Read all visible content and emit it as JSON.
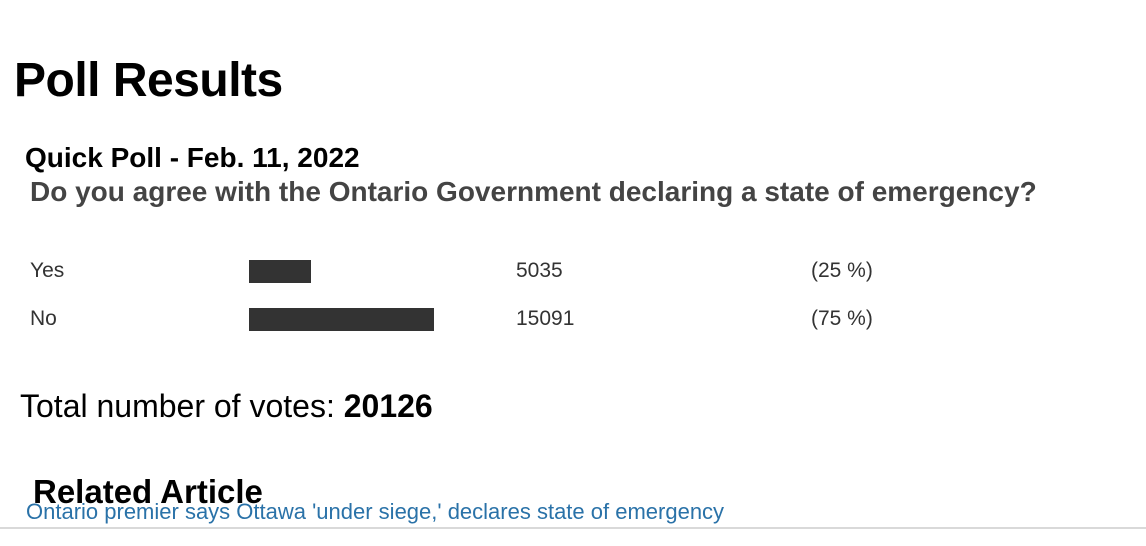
{
  "page": {
    "title": "Poll Results"
  },
  "poll": {
    "title": "Quick Poll - Feb. 11, 2022",
    "question": "Do you agree with the Ontario Government declaring a state of emergency?",
    "options": [
      {
        "label": "Yes",
        "votes": "5035",
        "percent": "(25 %)",
        "percent_value": 25
      },
      {
        "label": "No",
        "votes": "15091",
        "percent": "(75 %)",
        "percent_value": 75
      }
    ],
    "total_label": "Total number of votes:",
    "total_value": "20126"
  },
  "related": {
    "heading": "Related Article",
    "link_text": "Ontario premier says Ottawa 'under siege,' declares state of emergency"
  },
  "chart_data": {
    "type": "bar",
    "orientation": "horizontal",
    "categories": [
      "Yes",
      "No"
    ],
    "values": [
      5035,
      15091
    ],
    "percentages": [
      25,
      75
    ],
    "total": 20126,
    "bar_color": "#333333",
    "grid": false,
    "legend": false
  },
  "colors": {
    "link": "#2a72a8",
    "bar": "#333333",
    "question_text": "#444444",
    "heading_text": "#000000",
    "row_text": "#333333",
    "divider": "#d9d9d9",
    "background": "#ffffff"
  }
}
